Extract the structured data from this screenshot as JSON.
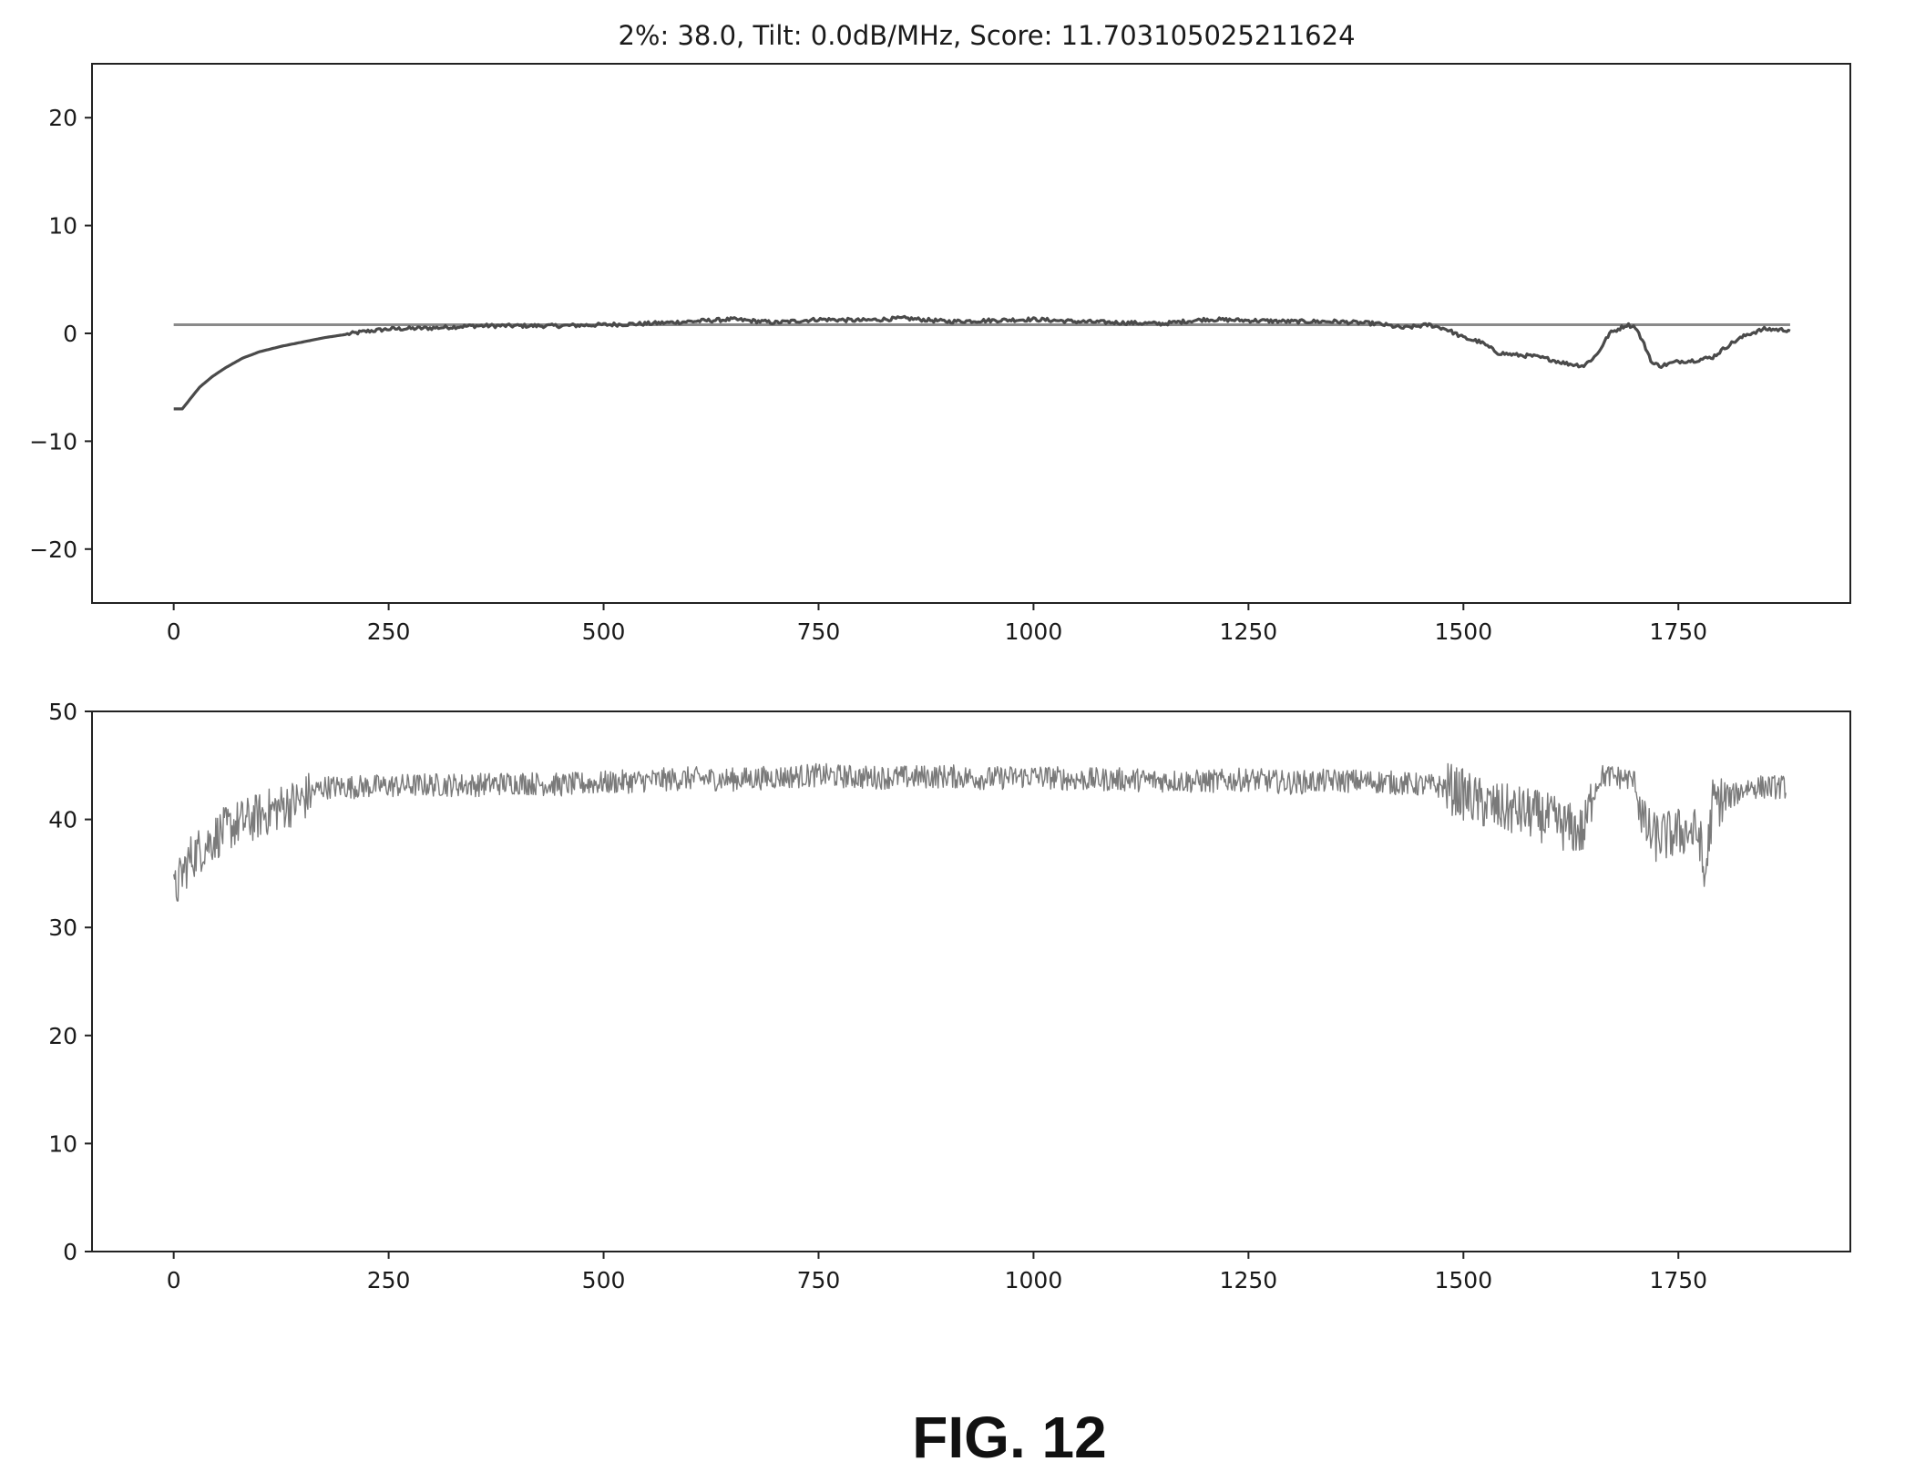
{
  "figure": {
    "title": "2%: 38.0, Tilt: 0.0dB/MHz, Score: 11.703105025211624",
    "caption": "FIG. 12"
  },
  "colors": {
    "line": "#4a4a4a",
    "reference": "#8a8a8a",
    "noise": "#7a7a7a",
    "noise_band": "#8c8c8c"
  },
  "chart_data": [
    {
      "type": "line",
      "xlim": [
        -95,
        1950
      ],
      "ylim": [
        -25,
        25
      ],
      "x_ticks": [
        0,
        250,
        500,
        750,
        1000,
        1250,
        1500,
        1750
      ],
      "y_ticks": [
        -20,
        -10,
        0,
        10,
        20
      ],
      "x_tick_labels": [
        "0",
        "250",
        "500",
        "750",
        "1000",
        "1250",
        "1500",
        "1750"
      ],
      "y_tick_labels": [
        "−20",
        "−10",
        "0",
        "10",
        "20"
      ],
      "grid": false,
      "series": [
        {
          "role": "reference",
          "x": [
            0,
            1880
          ],
          "y": [
            0.8,
            0.8
          ]
        },
        {
          "role": "main",
          "x": [
            0,
            10,
            20,
            30,
            45,
            60,
            80,
            100,
            125,
            150,
            175,
            200,
            225,
            250,
            300,
            350,
            400,
            450,
            500,
            550,
            600,
            650,
            700,
            750,
            800,
            850,
            900,
            950,
            1000,
            1050,
            1100,
            1150,
            1200,
            1250,
            1300,
            1350,
            1400,
            1430,
            1460,
            1480,
            1500,
            1520,
            1540,
            1560,
            1580,
            1600,
            1620,
            1640,
            1655,
            1670,
            1690,
            1700,
            1710,
            1720,
            1730,
            1750,
            1770,
            1790,
            1810,
            1830,
            1850,
            1880
          ],
          "y": [
            -7.0,
            -7.0,
            -6.0,
            -5.0,
            -4.0,
            -3.2,
            -2.3,
            -1.7,
            -1.2,
            -0.8,
            -0.4,
            -0.1,
            0.2,
            0.4,
            0.5,
            0.7,
            0.7,
            0.7,
            0.8,
            0.9,
            1.1,
            1.3,
            1.0,
            1.3,
            1.2,
            1.4,
            1.1,
            1.2,
            1.3,
            1.1,
            1.0,
            0.9,
            1.3,
            1.2,
            1.1,
            1.1,
            0.9,
            0.5,
            0.8,
            0.4,
            -0.4,
            -0.8,
            -1.8,
            -2.0,
            -2.1,
            -2.4,
            -2.8,
            -3.0,
            -2.0,
            0.0,
            0.8,
            0.6,
            -1.0,
            -2.8,
            -3.0,
            -2.6,
            -2.5,
            -2.2,
            -1.0,
            -0.1,
            0.4,
            0.3
          ]
        }
      ]
    },
    {
      "type": "line",
      "xlim": [
        -95,
        1950
      ],
      "ylim": [
        0,
        50
      ],
      "x_ticks": [
        0,
        250,
        500,
        750,
        1000,
        1250,
        1500,
        1750
      ],
      "y_ticks": [
        0,
        10,
        20,
        30,
        40,
        50
      ],
      "x_tick_labels": [
        "0",
        "250",
        "500",
        "750",
        "1000",
        "1250",
        "1500",
        "1750"
      ],
      "y_tick_labels": [
        "0",
        "10",
        "20",
        "30",
        "40",
        "50"
      ],
      "grid": false,
      "series": [
        {
          "role": "noisy",
          "x": [
            0,
            10,
            20,
            35,
            50,
            70,
            90,
            110,
            130,
            150,
            160,
            175,
            200,
            250,
            300,
            350,
            400,
            450,
            500,
            550,
            600,
            650,
            700,
            750,
            800,
            850,
            900,
            950,
            1000,
            1050,
            1100,
            1150,
            1200,
            1250,
            1300,
            1350,
            1400,
            1450,
            1480,
            1500,
            1520,
            1540,
            1560,
            1580,
            1600,
            1620,
            1640,
            1650,
            1660,
            1670,
            1690,
            1700,
            1710,
            1720,
            1740,
            1760,
            1775,
            1780,
            1790,
            1810,
            1830,
            1850,
            1875
          ],
          "y": [
            33.0,
            35.0,
            36.5,
            37.5,
            38.5,
            39.5,
            40.0,
            40.7,
            41.3,
            41.8,
            42.5,
            43.0,
            43.0,
            43.1,
            43.2,
            43.2,
            43.4,
            43.2,
            43.4,
            43.6,
            43.8,
            43.7,
            43.9,
            44.1,
            43.9,
            43.9,
            44.0,
            43.8,
            44.0,
            43.7,
            43.7,
            43.6,
            43.5,
            43.7,
            43.4,
            43.6,
            43.5,
            43.2,
            43.0,
            42.3,
            41.5,
            41.0,
            40.8,
            40.5,
            40.0,
            39.3,
            38.8,
            42.3,
            44.0,
            44.0,
            43.8,
            43.5,
            39.5,
            38.3,
            38.5,
            39.0,
            38.5,
            34.0,
            41.5,
            42.0,
            43.0,
            43.0,
            43.0
          ]
        }
      ]
    }
  ]
}
